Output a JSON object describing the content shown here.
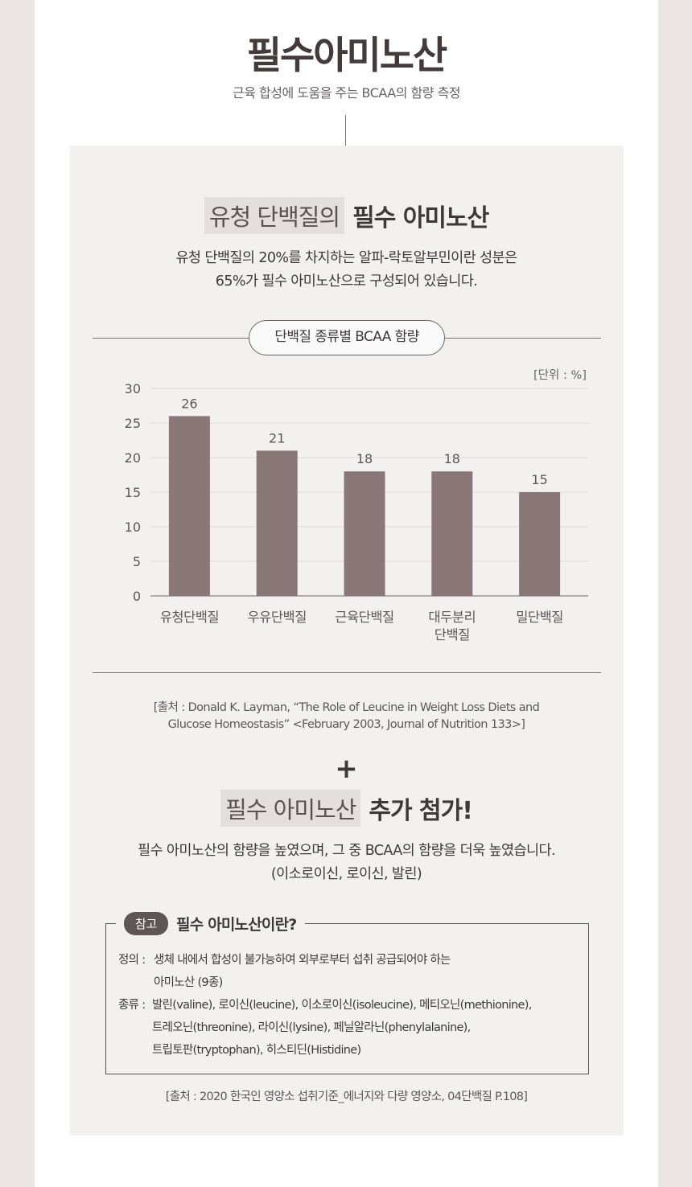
{
  "header": {
    "title": "필수아미노산",
    "subtitle": "근육 합성에 도움을 주는 BCAA의 함량 측정"
  },
  "section1": {
    "highlight": "유청 단백질의",
    "strong": "필수 아미노산",
    "desc_line1": "유청 단백질의 20%를 차지하는 알파-락토알부민이란 성분은",
    "desc_line2": "65%가 필수 아미노산으로 구성되어 있습니다."
  },
  "chart_data": {
    "type": "bar",
    "title": "단백질 종류별 BCAA 함량",
    "unit_label": "[단위 : %]",
    "categories": [
      "유청단백질",
      "우유단백질",
      "근육단백질",
      "대두분리\n단백질",
      "밀단백질"
    ],
    "values": [
      26,
      21,
      18,
      18,
      15
    ],
    "yticks": [
      "0",
      "5",
      "10",
      "15",
      "20",
      "25",
      "30"
    ],
    "ylim": [
      0,
      30
    ],
    "grid": true,
    "bar_color": "#8a7777"
  },
  "source1": {
    "line1": "[출처 : Donald K. Layman, “The Role of Leucine in Weight Loss Diets and",
    "line2": "Glucose Homeostasis” <February 2003, Journal of Nutrition 133>]"
  },
  "section2": {
    "plus": "+",
    "highlight": "필수 아미노산",
    "strong": "추가 첨가!",
    "desc_line1": "필수 아미노산의 함량을 높였으며, 그 중 BCAA의 함량을 더욱 높였습니다.",
    "desc_line2": "(이소로이신, 로이신, 발린)"
  },
  "note": {
    "badge": "참고",
    "title": "필수 아미노산이란?",
    "def_label": "정의 :",
    "def_line1": "생체 내에서 합성이 불가능하여 외부로부터 섭취 공급되어야 하는",
    "def_line2": "아미노산 (9종)",
    "kind_label": "종류 :",
    "kind_line1": "발린(valine), 로이신(leucine), 이소로이신(isoleucine), 메티오닌(methionine),",
    "kind_line2": "트레오닌(threonine), 라이신(lysine), 페닐알라닌(phenylalanine),",
    "kind_line3": "트립토판(tryptophan), 히스티딘(Histidine)"
  },
  "source2": {
    "text": "[출처 : 2020 한국인 영양소 섭취기준_에너지와 다량 영양소, 04단백질 P.108]"
  }
}
